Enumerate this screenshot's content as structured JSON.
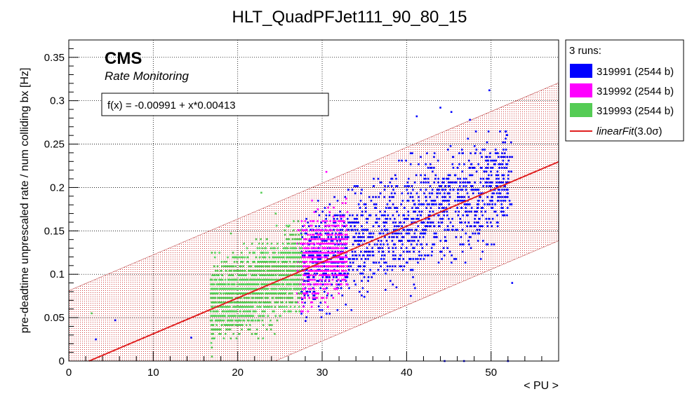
{
  "chart_data": {
    "type": "scatter",
    "title": "HLT_QuadPFJet111_90_80_15",
    "xlabel": "< PU >",
    "ylabel": "pre-deadtime unprescaled rate / num colliding bx [Hz]",
    "xlim": [
      0,
      58
    ],
    "ylim": [
      0,
      0.37
    ],
    "x_ticks": [
      "0",
      "10",
      "20",
      "30",
      "40",
      "50"
    ],
    "y_ticks": [
      "0",
      "0.05",
      "0.1",
      "0.15",
      "0.2",
      "0.25",
      "0.3",
      "0.35"
    ],
    "grid": true,
    "experiment_label": "CMS",
    "experiment_sublabel": "Rate Monitoring",
    "fit_formula": "f(x) = -0.00991 + x*0.00413",
    "fit": {
      "intercept": -0.00991,
      "slope": 0.00413,
      "band_halfwidth": 0.091,
      "band_label": "linearFit(3.0σ)",
      "color": "#e02020"
    },
    "legend": {
      "position": "top-right",
      "header": "3 runs:",
      "entries": [
        {
          "label": "319991 (2544 b)",
          "color": "#0000ff"
        },
        {
          "label": "319992 (2544 b)",
          "color": "#ff00ff"
        },
        {
          "label": "319993 (2544 b)",
          "color": "#55cc55"
        },
        {
          "label_prefix": "linearFit",
          "label_suffix": "(3.0σ)",
          "color": "#e02020",
          "style": "line"
        }
      ]
    },
    "series": [
      {
        "name": "319991 (2544 b)",
        "color": "#0000ff",
        "x_range": [
          27.5,
          52.5
        ],
        "clusters": [
          {
            "x": 44.0,
            "y": 0.292
          },
          {
            "x": 41.2,
            "y": 0.282
          },
          {
            "x": 49.8,
            "y": 0.312
          },
          {
            "x": 45.3,
            "y": 0.287
          },
          {
            "x": 47.5,
            "y": 0.278
          },
          {
            "x": 52.5,
            "y": 0.09
          },
          {
            "x": 38.8,
            "y": 0.085
          },
          {
            "x": 37.5,
            "y": 0.082
          },
          {
            "x": 40.5,
            "y": 0.075
          },
          {
            "x": 32.8,
            "y": 0.065
          },
          {
            "x": 35.0,
            "y": 0.074
          }
        ]
      },
      {
        "name": "319992 (2544 b)",
        "color": "#ff00ff",
        "x_range": [
          27.0,
          33.0
        ],
        "clusters": [
          {
            "x": 30.5,
            "y": 0.218
          },
          {
            "x": 28.8,
            "y": 0.185
          },
          {
            "x": 29.5,
            "y": 0.175
          }
        ]
      },
      {
        "name": "319993 (2544 b)",
        "color": "#55cc55",
        "x_range": [
          16.8,
          27.6
        ],
        "clusters": [
          {
            "x": 22.8,
            "y": 0.194
          },
          {
            "x": 24.5,
            "y": 0.17
          },
          {
            "x": 19.2,
            "y": 0.147
          },
          {
            "x": 26.0,
            "y": 0.155
          }
        ]
      }
    ],
    "stray_points": [
      {
        "x": 3.2,
        "y": 0.025,
        "color": "#0000ff"
      },
      {
        "x": 5.5,
        "y": 0.047,
        "color": "#0000ff"
      },
      {
        "x": 14.5,
        "y": 0.027,
        "color": "#0000ff"
      },
      {
        "x": 44.5,
        "y": 0.0,
        "color": "#0000ff"
      },
      {
        "x": 46.8,
        "y": 0.0,
        "color": "#0000ff"
      },
      {
        "x": 52.0,
        "y": 0.0,
        "color": "#0000ff"
      },
      {
        "x": 2.7,
        "y": 0.055,
        "color": "#55cc55"
      }
    ]
  }
}
